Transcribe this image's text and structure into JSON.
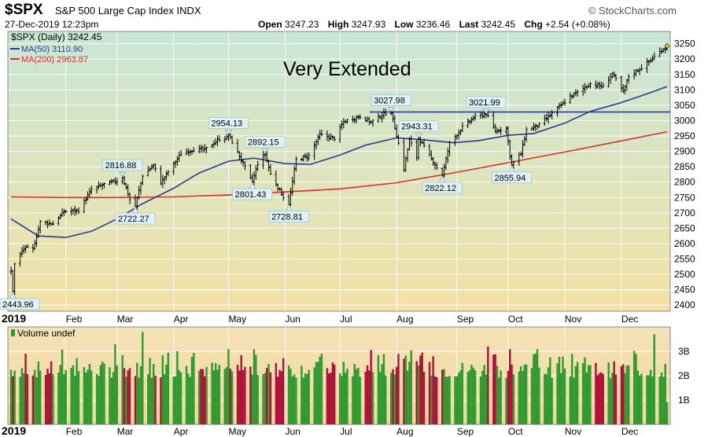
{
  "header": {
    "symbol": "$SPX",
    "description": "S&P 500 Large Cap Index",
    "exchange": "INDX",
    "source": "© StockCharts.com",
    "datetime": "27-Dec-2019 12:23pm",
    "open_label": "Open",
    "open": "3247.23",
    "high_label": "High",
    "high": "3247.93",
    "low_label": "Low",
    "low": "3236.46",
    "last_label": "Last",
    "last": "3242.45",
    "chg_label": "Chg",
    "chg": "+2.54 (+0.08%)"
  },
  "legend": {
    "price": "$SPX (Daily) 3242.45",
    "ma50": "MA(50) 3110.90",
    "ma200": "MA(200) 2963.87",
    "volume": "Volume undef"
  },
  "annotation_text": "Very Extended",
  "colors": {
    "ma50": "#2b3a8f",
    "ma200": "#d83030",
    "resistance": "#3344a0",
    "vol_up": "#2e9b2e",
    "vol_down": "#b0103a",
    "bg_top": "#c8e6d6",
    "bg_bottom": "#f3e2a6"
  },
  "chart_data": [
    {
      "type": "line",
      "title": "$SPX (Daily)",
      "ylim": [
        2380,
        3290
      ],
      "yticks": [
        2400,
        2450,
        2500,
        2550,
        2600,
        2650,
        2700,
        2750,
        2800,
        2850,
        2900,
        2950,
        3000,
        3050,
        3100,
        3150,
        3200,
        3250
      ],
      "month_labels": [
        "2019",
        "Feb",
        "Mar",
        "Apr",
        "May",
        "Jun",
        "Jul",
        "Aug",
        "Sep",
        "Oct",
        "Nov",
        "Dec"
      ],
      "price_points": [
        [
          "2019-01-02",
          2510
        ],
        [
          "2019-01-03",
          2447
        ],
        [
          "2019-01-04",
          2532
        ],
        [
          "2019-01-09",
          2585
        ],
        [
          "2019-01-14",
          2582
        ],
        [
          "2019-01-18",
          2670
        ],
        [
          "2019-01-25",
          2665
        ],
        [
          "2019-01-31",
          2704
        ],
        [
          "2019-02-08",
          2708
        ],
        [
          "2019-02-15",
          2775
        ],
        [
          "2019-02-22",
          2793
        ],
        [
          "2019-03-01",
          2804
        ],
        [
          "2019-03-04",
          2816.88
        ],
        [
          "2019-03-08",
          2743
        ],
        [
          "2019-03-11",
          2722.27
        ],
        [
          "2019-03-15",
          2822
        ],
        [
          "2019-03-21",
          2855
        ],
        [
          "2019-03-25",
          2798
        ],
        [
          "2019-03-29",
          2834
        ],
        [
          "2019-04-05",
          2892
        ],
        [
          "2019-04-12",
          2907
        ],
        [
          "2019-04-18",
          2905
        ],
        [
          "2019-04-26",
          2940
        ],
        [
          "2019-04-30",
          2945
        ],
        [
          "2019-05-01",
          2954.13
        ],
        [
          "2019-05-07",
          2884
        ],
        [
          "2019-05-13",
          2811
        ],
        [
          "2019-05-14",
          2801.43
        ],
        [
          "2019-05-17",
          2860
        ],
        [
          "2019-05-21",
          2892.15
        ],
        [
          "2019-05-24",
          2826
        ],
        [
          "2019-05-31",
          2752
        ],
        [
          "2019-06-03",
          2728.81
        ],
        [
          "2019-06-07",
          2873
        ],
        [
          "2019-06-14",
          2886
        ],
        [
          "2019-06-20",
          2954
        ],
        [
          "2019-06-28",
          2942
        ],
        [
          "2019-07-03",
          2996
        ],
        [
          "2019-07-12",
          3014
        ],
        [
          "2019-07-18",
          2995
        ],
        [
          "2019-07-26",
          3025
        ],
        [
          "2019-07-29",
          3027.98
        ],
        [
          "2019-08-01",
          2953
        ],
        [
          "2019-08-05",
          2844
        ],
        [
          "2019-08-08",
          2938
        ],
        [
          "2019-08-12",
          2882
        ],
        [
          "2019-08-13",
          2943.31
        ],
        [
          "2019-08-23",
          2847
        ],
        [
          "2019-08-26",
          2822.12
        ],
        [
          "2019-08-30",
          2926
        ],
        [
          "2019-09-06",
          2978
        ],
        [
          "2019-09-12",
          3009
        ],
        [
          "2019-09-19",
          3021.99
        ],
        [
          "2019-09-24",
          2966
        ],
        [
          "2019-09-30",
          2976
        ],
        [
          "2019-10-02",
          2887
        ],
        [
          "2019-10-03",
          2855.94
        ],
        [
          "2019-10-08",
          2893
        ],
        [
          "2019-10-11",
          2970
        ],
        [
          "2019-10-18",
          2986
        ],
        [
          "2019-10-28",
          3039
        ],
        [
          "2019-11-04",
          3078
        ],
        [
          "2019-11-08",
          3093
        ],
        [
          "2019-11-15",
          3120
        ],
        [
          "2019-11-22",
          3110
        ],
        [
          "2019-11-27",
          3153
        ],
        [
          "2019-12-03",
          3093
        ],
        [
          "2019-12-06",
          3145
        ],
        [
          "2019-12-12",
          3168
        ],
        [
          "2019-12-17",
          3192
        ],
        [
          "2019-12-23",
          3224
        ],
        [
          "2019-12-27",
          3242.45
        ]
      ],
      "ma50": [
        [
          "2019-01-02",
          2680
        ],
        [
          "2019-01-17",
          2625
        ],
        [
          "2019-02-01",
          2620
        ],
        [
          "2019-02-15",
          2640
        ],
        [
          "2019-03-01",
          2680
        ],
        [
          "2019-03-15",
          2730
        ],
        [
          "2019-04-01",
          2780
        ],
        [
          "2019-04-15",
          2830
        ],
        [
          "2019-05-01",
          2868
        ],
        [
          "2019-05-15",
          2878
        ],
        [
          "2019-06-01",
          2860
        ],
        [
          "2019-06-15",
          2858
        ],
        [
          "2019-07-01",
          2888
        ],
        [
          "2019-07-15",
          2920
        ],
        [
          "2019-08-01",
          2944
        ],
        [
          "2019-08-15",
          2938
        ],
        [
          "2019-09-01",
          2928
        ],
        [
          "2019-09-15",
          2935
        ],
        [
          "2019-10-01",
          2952
        ],
        [
          "2019-10-15",
          2958
        ],
        [
          "2019-11-01",
          2992
        ],
        [
          "2019-11-15",
          3030
        ],
        [
          "2019-12-01",
          3057
        ],
        [
          "2019-12-15",
          3085
        ],
        [
          "2019-12-27",
          3110.9
        ]
      ],
      "ma200": [
        [
          "2019-01-02",
          2752
        ],
        [
          "2019-02-01",
          2750
        ],
        [
          "2019-03-01",
          2750
        ],
        [
          "2019-04-01",
          2752
        ],
        [
          "2019-05-01",
          2758
        ],
        [
          "2019-06-01",
          2768
        ],
        [
          "2019-07-01",
          2778
        ],
        [
          "2019-08-01",
          2798
        ],
        [
          "2019-09-01",
          2830
        ],
        [
          "2019-10-01",
          2863
        ],
        [
          "2019-11-01",
          2898
        ],
        [
          "2019-12-01",
          2933
        ],
        [
          "2019-12-27",
          2963.87
        ]
      ],
      "resistance_level": 3028,
      "annotations": [
        {
          "date": "2019-01-03",
          "label": "2443.96",
          "position": "below"
        },
        {
          "date": "2019-03-04",
          "label": "2816.88",
          "position": "above"
        },
        {
          "date": "2019-03-11",
          "label": "2722.27",
          "position": "below"
        },
        {
          "date": "2019-05-01",
          "label": "2954.13",
          "position": "above"
        },
        {
          "date": "2019-05-14",
          "label": "2801.43",
          "position": "below"
        },
        {
          "date": "2019-05-21",
          "label": "2892.15",
          "position": "above"
        },
        {
          "date": "2019-06-03",
          "label": "2728.81",
          "position": "below"
        },
        {
          "date": "2019-07-29",
          "label": "3027.98",
          "position": "above"
        },
        {
          "date": "2019-08-13",
          "label": "2943.31",
          "position": "above"
        },
        {
          "date": "2019-08-26",
          "label": "2822.12",
          "position": "below"
        },
        {
          "date": "2019-09-19",
          "label": "3021.99",
          "position": "above"
        },
        {
          "date": "2019-10-03",
          "label": "2855.94",
          "position": "below"
        }
      ]
    },
    {
      "type": "bar",
      "title": "Volume",
      "ylim": [
        0,
        4
      ],
      "yticks": [
        1,
        2,
        3
      ],
      "ytick_labels": [
        "1B",
        "2B",
        "3B"
      ],
      "spikes": [
        [
          "2019-02-28",
          3.3
        ],
        [
          "2019-03-15",
          3.8
        ],
        [
          "2019-06-21",
          2.9
        ],
        [
          "2019-08-05",
          2.7
        ],
        [
          "2019-09-20",
          3.2
        ],
        [
          "2019-12-20",
          3.7
        ]
      ],
      "typical_range": [
        1.9,
        2.6
      ]
    }
  ]
}
